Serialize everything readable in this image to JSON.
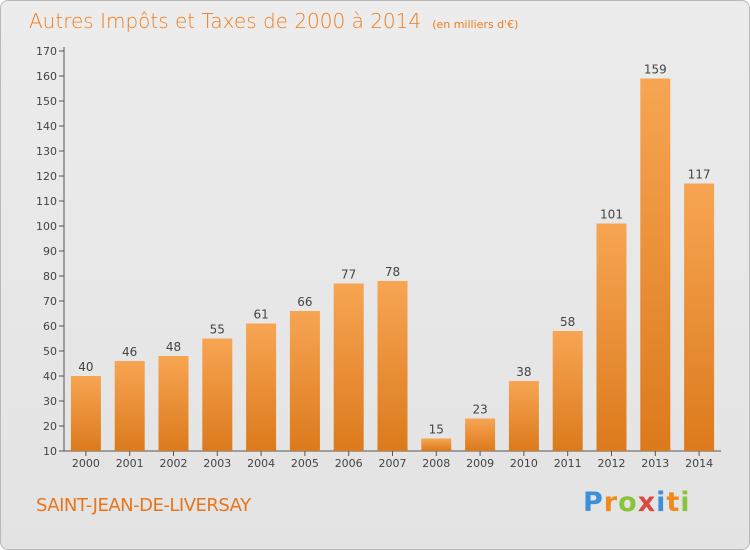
{
  "header": {
    "title": "Autres Impôts et Taxes de 2000 à 2014",
    "unit": "(en milliers d'€)"
  },
  "footer": {
    "town": "SAINT-JEAN-DE-LIVERSAY",
    "logo": "Proxiti"
  },
  "colors": {
    "bar_light": "#f7a553",
    "bar_dark": "#dc7a1c",
    "axis": "#555555",
    "text": "#444444",
    "accent": "#f07d1e"
  },
  "chart_data": {
    "type": "bar",
    "title": "Autres Impôts et Taxes de 2000 à 2014",
    "subtitle": "(en milliers d'€)",
    "xlabel": "",
    "ylabel": "",
    "categories": [
      "2000",
      "2001",
      "2002",
      "2003",
      "2004",
      "2005",
      "2006",
      "2007",
      "2008",
      "2009",
      "2010",
      "2011",
      "2012",
      "2013",
      "2014"
    ],
    "values": [
      40,
      46,
      48,
      55,
      61,
      66,
      77,
      78,
      15,
      23,
      38,
      58,
      101,
      159,
      117
    ],
    "ylim": [
      10,
      170
    ],
    "yticks": [
      10,
      20,
      30,
      40,
      50,
      60,
      70,
      80,
      90,
      100,
      110,
      120,
      130,
      140,
      150,
      160,
      170
    ],
    "grid": false,
    "legend": "none"
  }
}
